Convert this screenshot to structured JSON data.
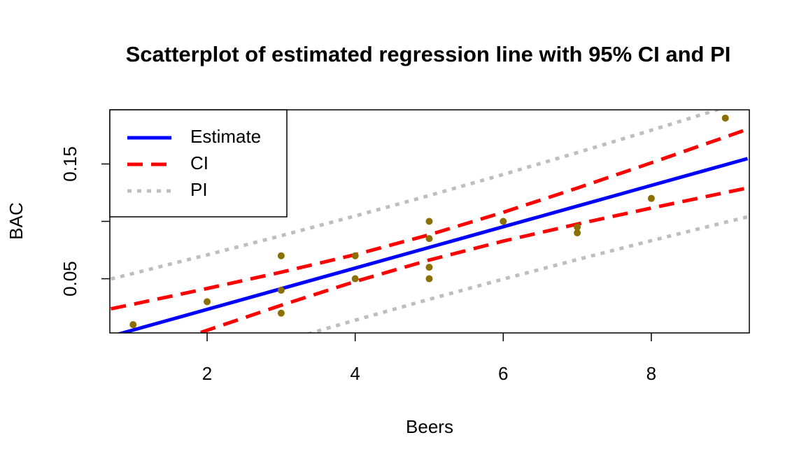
{
  "chart_data": {
    "type": "scatter",
    "title": "Scatterplot of estimated regression line with 95% CI and PI",
    "x_label": "Beers",
    "y_label": "BAC",
    "xlim": [
      0.686,
      9.324
    ],
    "ylim": [
      0.0028,
      0.1972
    ],
    "xticks": [
      2,
      4,
      6,
      8
    ],
    "yticks": [
      0.05,
      {
        "value": 0.1,
        "label": null
      },
      0.15
    ],
    "legend": "top-left",
    "points": {
      "color": "#8b7000",
      "x": [
        1,
        2,
        3,
        3,
        3,
        4,
        4,
        5,
        5,
        5,
        5,
        6,
        7,
        7,
        8,
        9
      ],
      "y": [
        0.01,
        0.03,
        0.07,
        0.04,
        0.02,
        0.07,
        0.05,
        0.1,
        0.085,
        0.06,
        0.05,
        0.1,
        0.095,
        0.09,
        0.12,
        0.19
      ]
    },
    "line_x": [
      0.7,
      1,
      2,
      3,
      4,
      5,
      6,
      7,
      8,
      9,
      9.3
    ],
    "series": [
      {
        "name": "Estimate",
        "color": "#0000ff",
        "dash": "solid",
        "values": [
          -0.0001,
          0.0053,
          0.0233,
          0.0413,
          0.0593,
          0.0773,
          0.0953,
          0.1133,
          0.1313,
          0.1493,
          0.1547
        ]
      },
      {
        "name": "CI",
        "color": "#ff0000",
        "dash": "dashed",
        "upper": [
          0.0238,
          0.0278,
          0.0415,
          0.0557,
          0.071,
          0.0883,
          0.1079,
          0.129,
          0.151,
          0.1735,
          0.1803
        ],
        "lower": [
          -0.024,
          -0.0172,
          0.0051,
          0.0269,
          0.0476,
          0.0663,
          0.0828,
          0.0976,
          0.1116,
          0.1251,
          0.1291
        ]
      },
      {
        "name": "PI",
        "color": "#bebebe",
        "dash": "dotted",
        "upper": [
          0.0498,
          0.0546,
          0.0708,
          0.0875,
          0.1047,
          0.1225,
          0.1409,
          0.1599,
          0.1794,
          0.1994,
          0.2055
        ],
        "lower": [
          -0.05,
          -0.044,
          -0.0242,
          -0.0049,
          0.0139,
          0.0321,
          0.0497,
          0.0667,
          0.0832,
          0.0992,
          0.1039
        ]
      }
    ]
  }
}
